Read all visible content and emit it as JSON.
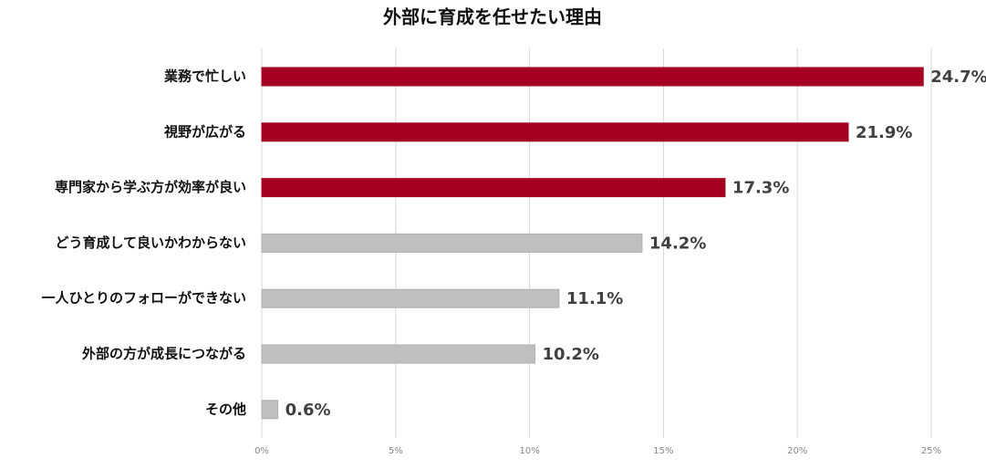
{
  "chart_data": {
    "type": "bar",
    "orientation": "horizontal",
    "title": "外部に育成を任せたい理由",
    "categories": [
      "業務で忙しい",
      "視野が広がる",
      "専門家から学ぶ方が効率が良い",
      "どう育成して良いかわからない",
      "一人ひとりのフォローができない",
      "外部の方が成長につながる",
      "その他"
    ],
    "values": [
      24.7,
      21.9,
      17.3,
      14.2,
      11.1,
      10.2,
      0.6
    ],
    "value_labels": [
      "24.7%",
      "21.9%",
      "17.3%",
      "14.2%",
      "11.1%",
      "10.2%",
      "0.6%"
    ],
    "colors": [
      "#a50021",
      "#a50021",
      "#a50021",
      "#bfbfbf",
      "#bfbfbf",
      "#bfbfbf",
      "#bfbfbf"
    ],
    "xlim": [
      0,
      25
    ],
    "xticks": [
      {
        "value": 0,
        "label": "0%"
      },
      {
        "value": 5,
        "label": "5%"
      },
      {
        "value": 10,
        "label": "10%"
      },
      {
        "value": 15,
        "label": "15%"
      },
      {
        "value": 20,
        "label": "20%"
      },
      {
        "value": 25,
        "label": "25%"
      }
    ],
    "grid": true
  }
}
